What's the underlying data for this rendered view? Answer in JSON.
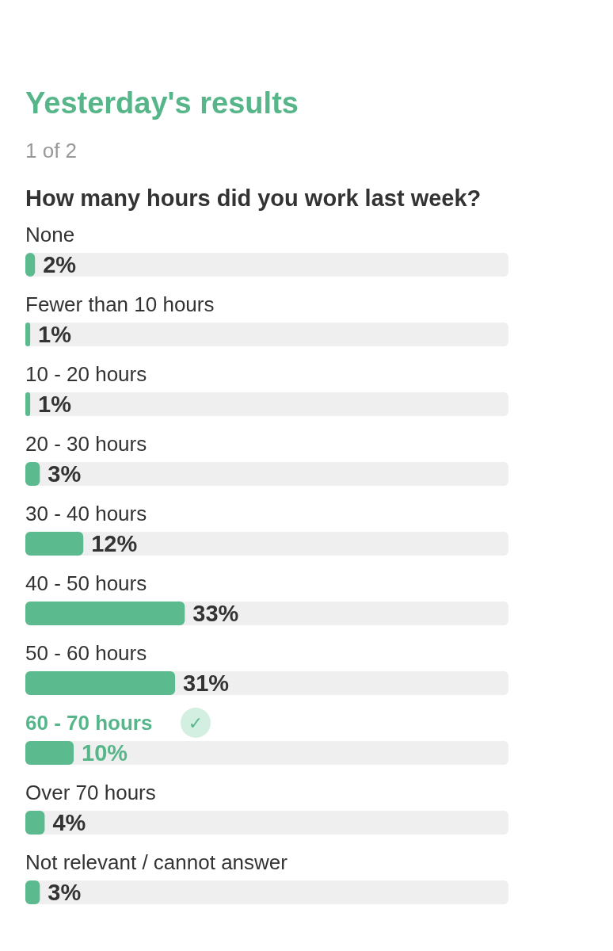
{
  "chart_data": {
    "type": "bar",
    "orientation": "horizontal",
    "title": "Yesterday's results",
    "subtitle": "1 of 2",
    "ylabel": "How many hours did you work last week?",
    "categories": [
      "None",
      "Fewer than 10 hours",
      "10 - 20 hours",
      "20 - 30 hours",
      "30 - 40 hours",
      "40 - 50 hours",
      "50 - 60 hours",
      "60 - 70 hours",
      "Over 70 hours",
      "Not relevant / cannot answer"
    ],
    "values": [
      2,
      1,
      1,
      3,
      12,
      33,
      31,
      10,
      4,
      3
    ],
    "value_labels": [
      "2%",
      "1%",
      "1%",
      "3%",
      "12%",
      "33%",
      "31%",
      "10%",
      "4%",
      "3%"
    ],
    "color": "#5cba8f",
    "xlim": [
      0,
      100
    ],
    "tick_labels": false,
    "annotations": [
      {
        "text": "✓",
        "y": "60 - 70 hours"
      }
    ]
  }
}
